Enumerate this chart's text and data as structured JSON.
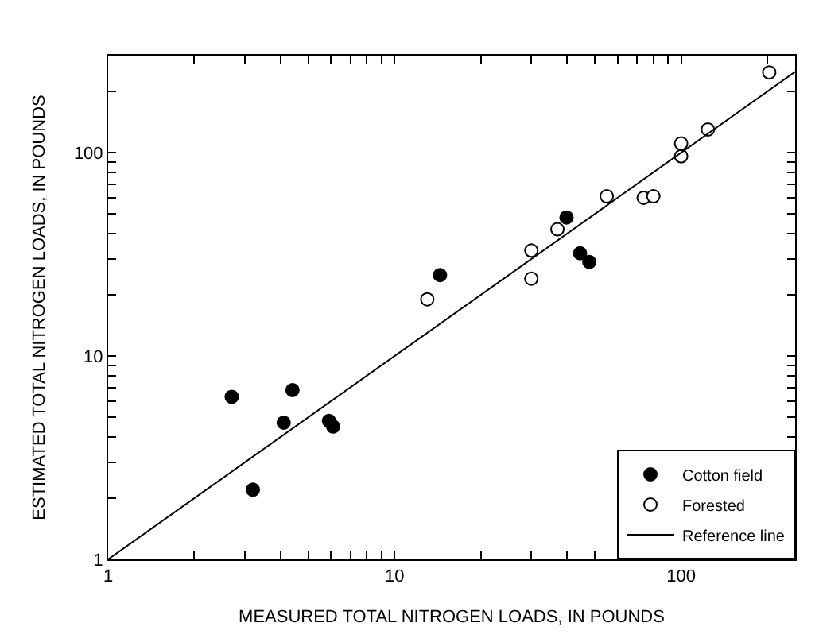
{
  "chart_data": {
    "type": "scatter",
    "xlabel": "MEASURED TOTAL NITROGEN LOADS, IN POUNDS",
    "ylabel": "ESTIMATED TOTAL NITROGEN LOADS, IN POUNDS",
    "log": "xy",
    "legend": "bottom right",
    "xlim": [
      1,
      250
    ],
    "ylim": [
      1,
      300
    ],
    "xticks": [
      1,
      {
        "value": 2,
        "label": null
      },
      {
        "value": 3,
        "label": null
      },
      {
        "value": 4,
        "label": null
      },
      {
        "value": 5,
        "label": null
      },
      {
        "value": 6,
        "label": null
      },
      {
        "value": 7,
        "label": null
      },
      {
        "value": 8,
        "label": null
      },
      {
        "value": 9,
        "label": null
      },
      10,
      {
        "value": 20,
        "label": null
      },
      {
        "value": 30,
        "label": null
      },
      {
        "value": 40,
        "label": null
      },
      {
        "value": 50,
        "label": null
      },
      {
        "value": 60,
        "label": null
      },
      {
        "value": 70,
        "label": null
      },
      {
        "value": 80,
        "label": null
      },
      {
        "value": 90,
        "label": null
      },
      100,
      {
        "value": 200,
        "label": null
      }
    ],
    "yticks": [
      1,
      {
        "value": 2,
        "label": null
      },
      {
        "value": 3,
        "label": null
      },
      {
        "value": 4,
        "label": null
      },
      {
        "value": 5,
        "label": null
      },
      {
        "value": 6,
        "label": null
      },
      {
        "value": 7,
        "label": null
      },
      {
        "value": 8,
        "label": null
      },
      {
        "value": 9,
        "label": null
      },
      10,
      {
        "value": 20,
        "label": null
      },
      {
        "value": 30,
        "label": null
      },
      {
        "value": 40,
        "label": null
      },
      {
        "value": 50,
        "label": null
      },
      {
        "value": 60,
        "label": null
      },
      {
        "value": 70,
        "label": null
      },
      {
        "value": 80,
        "label": null
      },
      {
        "value": 90,
        "label": null
      },
      100,
      {
        "value": 200,
        "label": null
      }
    ],
    "series": [
      {
        "name": "Cotton field",
        "marker": "circle",
        "color": "#000000",
        "x": [
          2.7,
          3.2,
          4.1,
          4.4,
          5.9,
          6.1,
          14.4,
          39.8,
          44.4,
          47.8
        ],
        "values": [
          6.3,
          2.2,
          4.7,
          6.8,
          4.8,
          4.5,
          25,
          48,
          32,
          29
        ]
      },
      {
        "name": "Forested",
        "marker": "circle",
        "color": "#ffffff",
        "x": [
          13,
          30,
          30,
          37,
          55,
          74,
          80,
          100,
          100,
          124,
          203
        ],
        "values": [
          19,
          33,
          24,
          42,
          61,
          60,
          61,
          96,
          111,
          130,
          248
        ]
      },
      {
        "name": "Reference line",
        "type": "line",
        "marker": "none",
        "line_style": "solid",
        "color": "#000000",
        "x": [
          1,
          250
        ],
        "values": [
          1,
          250
        ]
      }
    ]
  }
}
